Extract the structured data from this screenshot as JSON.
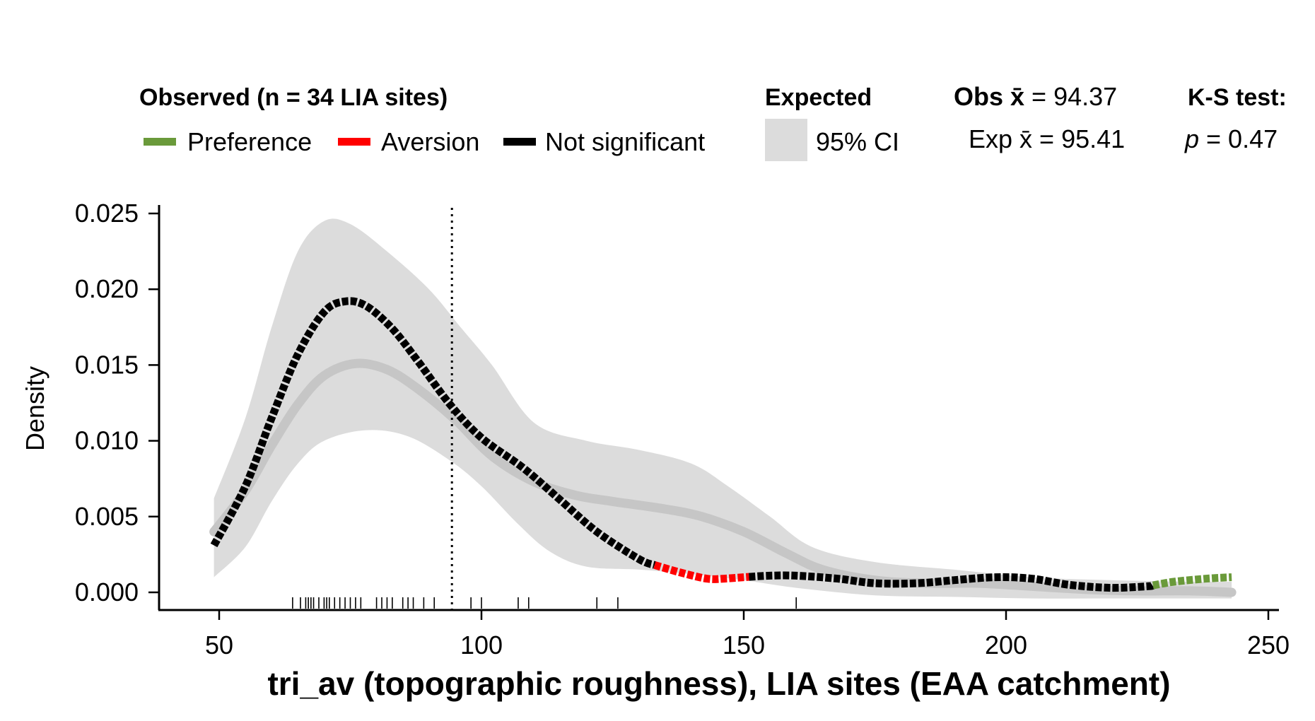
{
  "chart_data": {
    "type": "line",
    "title": "",
    "xlabel": "tri_av (topographic roughness), LIA sites (EAA catchment)",
    "ylabel": "Density",
    "xlim": [
      38,
      253
    ],
    "ylim": [
      -0.0011,
      0.0257
    ],
    "x_ticks": [
      "50",
      "100",
      "150",
      "200",
      "250"
    ],
    "y_ticks": [
      "0.000",
      "0.005",
      "0.010",
      "0.015",
      "0.020",
      "0.025"
    ],
    "legend": {
      "observed_title": "Observed (n = 34 LIA sites)",
      "preference_label": "Preference",
      "aversion_label": "Aversion",
      "not_significant_label": "Not significant",
      "expected_title": "Expected",
      "ci_label": "95% CI",
      "obs_mean_label": "Obs x̄ = 94.37",
      "exp_mean_label": "Exp x̄ = 95.41",
      "ks_title": "K-S test:",
      "ks_p_label": "p = 0.47"
    },
    "obs_mean": 94.37,
    "exp_mean": 95.41,
    "ks_p": 0.47,
    "colors": {
      "preference": "#6a9a3a",
      "aversion": "#ff0000",
      "not_significant": "#000000",
      "ci_band": "#dcdcdc",
      "expected_line": "#c6c6c6"
    },
    "series": [
      {
        "name": "Observed",
        "points": [
          [
            49,
            0.0031
          ],
          [
            55,
            0.007
          ],
          [
            60,
            0.0115
          ],
          [
            65,
            0.0157
          ],
          [
            70,
            0.0185
          ],
          [
            74,
            0.0192
          ],
          [
            78,
            0.0189
          ],
          [
            83,
            0.0174
          ],
          [
            88,
            0.0152
          ],
          [
            94,
            0.0124
          ],
          [
            100,
            0.0102
          ],
          [
            108,
            0.0082
          ],
          [
            115,
            0.0061
          ],
          [
            122,
            0.004
          ],
          [
            130,
            0.0022
          ],
          [
            133,
            0.0018
          ],
          [
            138,
            0.0013
          ],
          [
            143,
            0.0009
          ],
          [
            146,
            0.0009
          ],
          [
            150,
            0.001
          ],
          [
            155,
            0.0011
          ],
          [
            160,
            0.0011
          ],
          [
            168,
            0.0009
          ],
          [
            175,
            0.0006
          ],
          [
            183,
            0.0006
          ],
          [
            190,
            0.0008
          ],
          [
            198,
            0.001
          ],
          [
            205,
            0.0009
          ],
          [
            212,
            0.0005
          ],
          [
            220,
            0.0003
          ],
          [
            227,
            0.0004
          ],
          [
            232,
            0.0007
          ],
          [
            238,
            0.0009
          ],
          [
            243,
            0.001
          ]
        ],
        "segments": [
          {
            "status": "not_significant",
            "x": [
              49,
              133
            ]
          },
          {
            "status": "aversion",
            "x": [
              133,
              151
            ]
          },
          {
            "status": "not_significant",
            "x": [
              151,
              228
            ]
          },
          {
            "status": "preference",
            "x": [
              228,
              243
            ]
          }
        ]
      },
      {
        "name": "Expected",
        "points": [
          [
            49,
            0.004
          ],
          [
            55,
            0.0067
          ],
          [
            60,
            0.0097
          ],
          [
            65,
            0.0124
          ],
          [
            70,
            0.0143
          ],
          [
            76,
            0.0151
          ],
          [
            82,
            0.0147
          ],
          [
            88,
            0.0134
          ],
          [
            95,
            0.0114
          ],
          [
            102,
            0.009
          ],
          [
            110,
            0.0073
          ],
          [
            118,
            0.0064
          ],
          [
            125,
            0.006
          ],
          [
            135,
            0.0055
          ],
          [
            142,
            0.005
          ],
          [
            150,
            0.004
          ],
          [
            158,
            0.0026
          ],
          [
            165,
            0.0015
          ],
          [
            175,
            0.0008
          ],
          [
            185,
            0.0006
          ],
          [
            195,
            0.0006
          ],
          [
            205,
            0.0004
          ],
          [
            215,
            0.0002
          ],
          [
            225,
            0.0001
          ],
          [
            235,
            0.0001
          ],
          [
            243,
            0.0
          ]
        ]
      }
    ],
    "ci_upper": [
      [
        49,
        0.0062
      ],
      [
        55,
        0.0115
      ],
      [
        60,
        0.0175
      ],
      [
        65,
        0.0225
      ],
      [
        70,
        0.0245
      ],
      [
        75,
        0.0243
      ],
      [
        82,
        0.0225
      ],
      [
        90,
        0.02
      ],
      [
        96,
        0.0175
      ],
      [
        102,
        0.015
      ],
      [
        110,
        0.0112
      ],
      [
        120,
        0.01
      ],
      [
        130,
        0.0094
      ],
      [
        140,
        0.0085
      ],
      [
        147,
        0.007
      ],
      [
        155,
        0.005
      ],
      [
        163,
        0.003
      ],
      [
        175,
        0.002
      ],
      [
        190,
        0.0015
      ],
      [
        205,
        0.001
      ],
      [
        220,
        0.0008
      ],
      [
        235,
        0.0007
      ],
      [
        243,
        0.0007
      ]
    ],
    "ci_lower": [
      [
        49,
        0.001
      ],
      [
        55,
        0.003
      ],
      [
        60,
        0.006
      ],
      [
        65,
        0.0085
      ],
      [
        70,
        0.01
      ],
      [
        78,
        0.0107
      ],
      [
        86,
        0.0103
      ],
      [
        94,
        0.0087
      ],
      [
        100,
        0.007
      ],
      [
        107,
        0.0045
      ],
      [
        113,
        0.0027
      ],
      [
        120,
        0.0017
      ],
      [
        130,
        0.0015
      ],
      [
        140,
        0.0012
      ],
      [
        150,
        0.0008
      ],
      [
        160,
        0.0003
      ],
      [
        175,
        -0.0002
      ],
      [
        190,
        -0.0003
      ],
      [
        205,
        -0.0004
      ],
      [
        220,
        -0.0004
      ],
      [
        235,
        -0.0004
      ],
      [
        243,
        -0.0004
      ]
    ],
    "rug": [
      64,
      65.5,
      66.5,
      67,
      67.5,
      68,
      69,
      70,
      70.5,
      71,
      72,
      73,
      74,
      75,
      76,
      77,
      80,
      81,
      82,
      83,
      85,
      86,
      87,
      89,
      91,
      98,
      100,
      107,
      109,
      122,
      126,
      160
    ],
    "grid": false,
    "legend_position": "top"
  }
}
